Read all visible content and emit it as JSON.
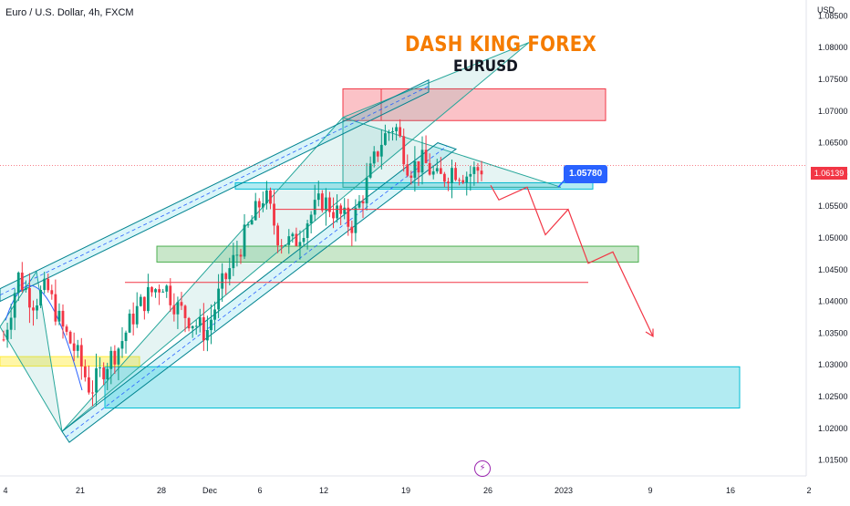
{
  "header": {
    "symbol": "Euro / U.S. Dollar, 4h, FXCM",
    "brand": "DASH KING FOREX",
    "subtitle": "EURUSD",
    "unit": "USD"
  },
  "price_tag": {
    "value": "1.06139",
    "color": "#f23645"
  },
  "callout": {
    "value": "1.05780",
    "color": "#2962ff"
  },
  "events": {
    "icon": "lightning-icon"
  },
  "chart_data": {
    "type": "candlestick",
    "symbol": "EURUSD",
    "timeframe": "4h",
    "ylim": [
      1.0125,
      1.0875
    ],
    "x_ticks": [
      "4",
      "21",
      "28",
      "Dec",
      "6",
      "12",
      "19",
      "26",
      "2023",
      "9",
      "16",
      "2"
    ],
    "y_ticks": [
      "1.08500",
      "1.08000",
      "1.07500",
      "1.07000",
      "1.06500",
      "1.06000",
      "1.05500",
      "1.05000",
      "1.04500",
      "1.04000",
      "1.03500",
      "1.03000",
      "1.02500",
      "1.02000",
      "1.01500"
    ],
    "last_price": 1.06139,
    "marked_level": 1.0578,
    "close_path": [
      1.034,
      1.044,
      1.04,
      1.042,
      1.036,
      1.032,
      1.026,
      1.03,
      1.033,
      1.038,
      1.041,
      1.043,
      1.039,
      1.037,
      1.035,
      1.042,
      1.047,
      1.052,
      1.057,
      1.05,
      1.049,
      1.053,
      1.056,
      1.054,
      1.052,
      1.058,
      1.065,
      1.068,
      1.061,
      1.062,
      1.059,
      1.061,
      1.06,
      1.061
    ],
    "zones": [
      {
        "name": "supply",
        "low": 1.0685,
        "high": 1.0735,
        "color": "#f23645"
      },
      {
        "name": "demand-mid",
        "low": 1.0462,
        "high": 1.0487,
        "color": "#4caf50"
      },
      {
        "name": "demand-low",
        "low": 1.0232,
        "high": 1.0297,
        "color": "#00bcd4"
      },
      {
        "name": "demand-left",
        "low": 1.0298,
        "high": 1.0313,
        "color": "#ffeb3b"
      },
      {
        "name": "support",
        "low": 1.0577,
        "high": 1.0587,
        "color": "#00bcd4"
      }
    ],
    "levels": [
      1.0545,
      1.043,
      1.0588
    ],
    "projection": [
      1.0583,
      1.056,
      1.058,
      1.0505,
      1.0545,
      1.046,
      1.0478,
      1.0345
    ]
  }
}
